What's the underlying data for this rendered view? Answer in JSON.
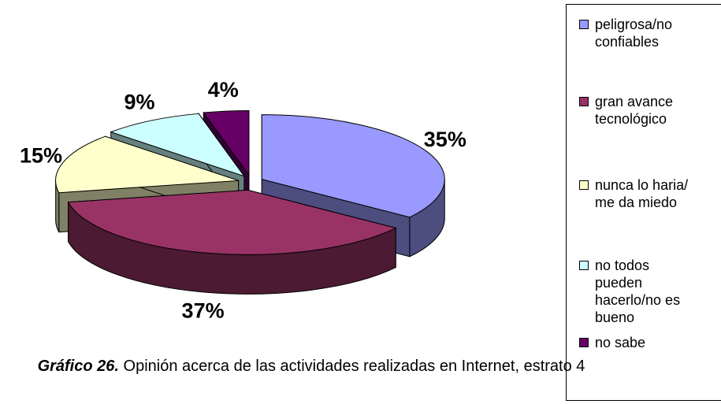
{
  "chart_data": {
    "type": "pie3d",
    "categories": [
      "peligrosa/no\nconfiables",
      "gran avance\ntecnológico",
      "nunca lo haria/\nme da miedo",
      "no todos\npueden\nhacerlo/no es\nbueno",
      "no sabe"
    ],
    "values": [
      35,
      37,
      15,
      9,
      4
    ],
    "value_labels": [
      "35%",
      "37%",
      "15%",
      "9%",
      "4%"
    ],
    "colors": [
      "#9999ff",
      "#993366",
      "#ffffcc",
      "#ccffff",
      "#660066"
    ],
    "caption_label": "Gráfico 26.",
    "caption_text": "Opinión acerca de las actividades realizadas en Internet, estrato 4"
  }
}
